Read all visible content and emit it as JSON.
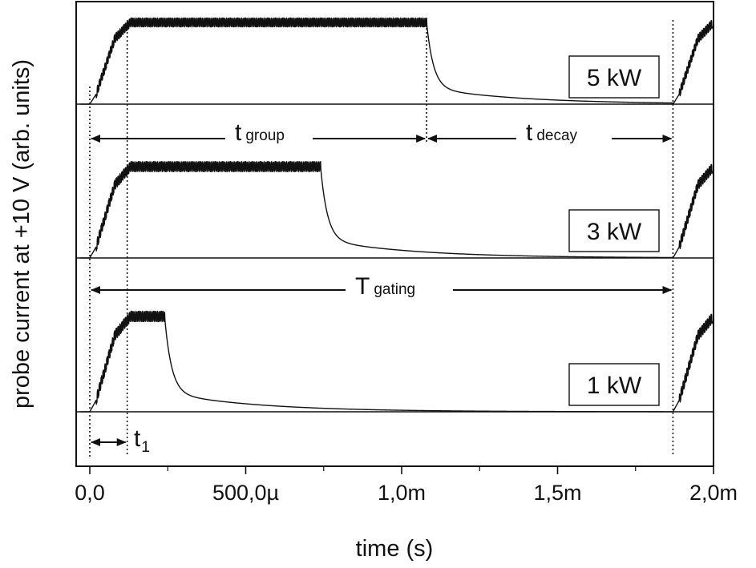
{
  "chart_data": {
    "type": "line",
    "title": "",
    "xlabel": "time (s)",
    "ylabel": "probe current at +10 V (arb. units)",
    "xlim": [
      -5e-05,
      0.002
    ],
    "x_ticks": [
      {
        "value": 0,
        "label": "0,0"
      },
      {
        "value": 0.0005,
        "label": "500,0µ"
      },
      {
        "value": 0.001,
        "label": "1,0m"
      },
      {
        "value": 0.0015,
        "label": "1,5m"
      },
      {
        "value": 0.002,
        "label": "2,0m"
      }
    ],
    "gating_period": 0.00187,
    "series": [
      {
        "name": "5 kW",
        "label": "5 kW",
        "pulse_end": 0.00108,
        "plateau_level": 1.0
      },
      {
        "name": "3 kW",
        "label": "3 kW",
        "pulse_end": 0.00074,
        "plateau_level": 1.0
      },
      {
        "name": "1 kW",
        "label": "1 kW",
        "pulse_end": 0.00024,
        "plateau_level": 1.0
      }
    ],
    "markers": {
      "t_start": 0.0,
      "t1": 0.00012,
      "t_group_end": 0.00108,
      "t_gating_end": 0.00187
    },
    "annotations": [
      {
        "id": "t-group",
        "main": "t",
        "sub": "group",
        "from": 0.0,
        "to": 0.00108
      },
      {
        "id": "t-decay",
        "main": "t",
        "sub": "decay",
        "from": 0.00108,
        "to": 0.00187
      },
      {
        "id": "t-gating",
        "main": "T",
        "sub": "gating",
        "from": 0.0,
        "to": 0.00187
      },
      {
        "id": "t1",
        "main": "t",
        "sub": "1",
        "from": 0.0,
        "to": 0.00012
      }
    ]
  }
}
